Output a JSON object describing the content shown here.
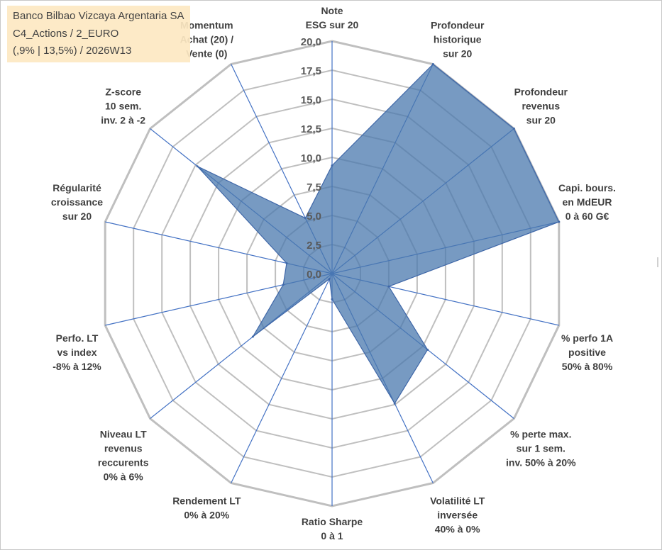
{
  "info": {
    "company": "Banco Bilbao Vizcaya Argentaria SA",
    "portfolio": "C4_Actions / 2_EURO",
    "period": "(,9% | 13,5%) / 2026W13"
  },
  "colors": {
    "fill": "#4a78ad",
    "stroke": "#3f67a8",
    "grid": "#bfbfbf",
    "spoke": "#4472c4",
    "label": "#404040",
    "info_bg": "#fde9c3"
  },
  "chart_data": {
    "type": "radar",
    "title": "",
    "rlim": [
      0,
      20
    ],
    "ticks": [
      "0,0",
      "2,5",
      "5,0",
      "7,5",
      "10,0",
      "12,5",
      "15,0",
      "17,5",
      "20,0"
    ],
    "grid": true,
    "axes": [
      "Note\nESG sur 20",
      "Profondeur\nhistorique\nsur 20",
      "Profondeur\nrevenus\nsur 20",
      "Capi. bours.\nen MdEUR\n0 à 60 G€",
      "% perfo 1A\npositive\n50% à 80%",
      "% perte max.\nsur 1 sem.\ninv. 50% à 20%",
      "Volatilité LT\ninversée\n40% à 0%",
      "Ratio Sharpe\n0 à 1",
      "Rendement LT\n0% à 20%",
      "Niveau LT\nrevenus\nreccurents\n0% à 6%",
      "Perfo. LT\nvs index\n-8% à 12%",
      "Régularité\ncroissance\nsur 20",
      "Z-score\n10 sem.\ninv. 2 à -2",
      "Momentum\nAchat (20) /\nVente (0)"
    ],
    "series": [
      {
        "name": "Banco Bilbao Vizcaya Argentaria SA",
        "values": [
          9.3,
          20,
          20,
          20,
          5,
          10.5,
          12.4,
          2.2,
          0.5,
          8.7,
          4.3,
          4,
          14.8,
          5.3
        ]
      }
    ]
  }
}
